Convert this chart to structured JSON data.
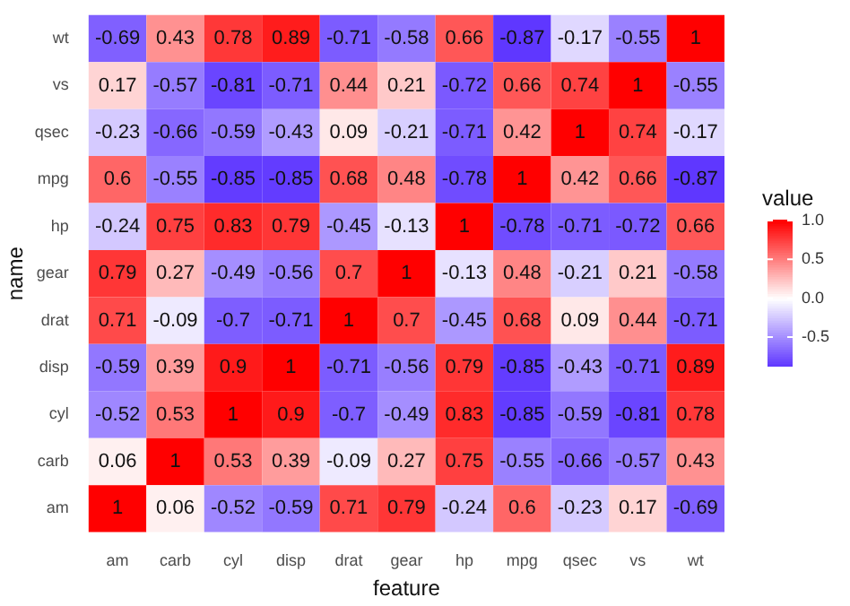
{
  "chart_data": {
    "type": "heatmap",
    "xlabel": "feature",
    "ylabel": "name",
    "clabel": "value",
    "categories": [
      "am",
      "carb",
      "cyl",
      "disp",
      "drat",
      "gear",
      "hp",
      "mpg",
      "qsec",
      "vs",
      "wt"
    ],
    "y_categories": [
      "wt",
      "vs",
      "qsec",
      "mpg",
      "hp",
      "gear",
      "drat",
      "disp",
      "cyl",
      "carb",
      "am"
    ],
    "cells": [
      [
        -0.69,
        0.43,
        0.78,
        0.89,
        -0.71,
        -0.58,
        0.66,
        -0.87,
        -0.17,
        -0.55,
        1
      ],
      [
        0.17,
        -0.57,
        -0.81,
        -0.71,
        0.44,
        0.21,
        -0.72,
        0.66,
        0.74,
        1,
        -0.55
      ],
      [
        -0.23,
        -0.66,
        -0.59,
        -0.43,
        0.09,
        -0.21,
        -0.71,
        0.42,
        1,
        0.74,
        -0.17
      ],
      [
        0.6,
        -0.55,
        -0.85,
        -0.85,
        0.68,
        0.48,
        -0.78,
        1,
        0.42,
        0.66,
        -0.87
      ],
      [
        -0.24,
        0.75,
        0.83,
        0.79,
        -0.45,
        -0.13,
        1,
        -0.78,
        -0.71,
        -0.72,
        0.66
      ],
      [
        0.79,
        0.27,
        -0.49,
        -0.56,
        0.7,
        1,
        -0.13,
        0.48,
        -0.21,
        0.21,
        -0.58
      ],
      [
        0.71,
        -0.09,
        -0.7,
        -0.71,
        1,
        0.7,
        -0.45,
        0.68,
        0.09,
        0.44,
        -0.71
      ],
      [
        -0.59,
        0.39,
        0.9,
        1,
        -0.71,
        -0.56,
        0.79,
        -0.85,
        -0.43,
        -0.71,
        0.89
      ],
      [
        -0.52,
        0.53,
        1,
        0.9,
        -0.7,
        -0.49,
        0.83,
        -0.85,
        -0.59,
        -0.81,
        0.78
      ],
      [
        0.06,
        1,
        0.53,
        0.39,
        -0.09,
        0.27,
        0.75,
        -0.55,
        -0.66,
        -0.57,
        0.43
      ],
      [
        1,
        0.06,
        -0.52,
        -0.59,
        0.71,
        0.79,
        -0.24,
        0.6,
        -0.23,
        0.17,
        -0.69
      ]
    ],
    "data_labels": true,
    "clim": [
      -0.87,
      1
    ],
    "cticks": [
      {
        "value": 1,
        "label": "1.0"
      },
      {
        "value": 0.5,
        "label": "0.5"
      },
      {
        "value": 0,
        "label": "0.0"
      },
      {
        "value": -0.5,
        "label": "-0.5"
      }
    ]
  }
}
